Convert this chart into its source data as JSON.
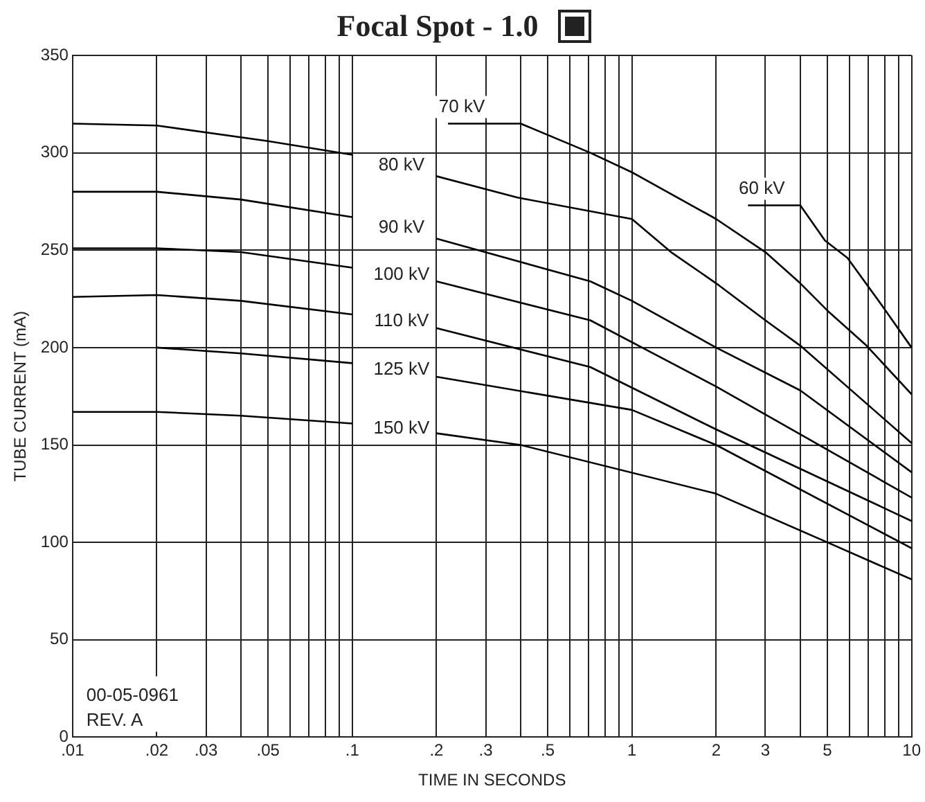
{
  "chart_data": {
    "type": "line",
    "title": "Focal Spot - 1.0",
    "xlabel": "TIME IN SECONDS",
    "ylabel": "TUBE CURRENT (mA)",
    "log": "x",
    "grid": true,
    "legend": false,
    "marker": "none",
    "line_style": "solid",
    "xlim": [
      0.01,
      10
    ],
    "ylim": [
      0,
      350
    ],
    "xticks": [
      {
        "value": 0.01,
        "label": ".01"
      },
      {
        "value": 0.02,
        "label": ".02"
      },
      {
        "value": 0.03,
        "label": ".03"
      },
      {
        "value": 0.04,
        "label": null
      },
      {
        "value": 0.05,
        "label": ".05"
      },
      {
        "value": 0.06,
        "label": null
      },
      {
        "value": 0.07,
        "label": null
      },
      {
        "value": 0.08,
        "label": null
      },
      {
        "value": 0.09,
        "label": null
      },
      {
        "value": 0.1,
        "label": ".1"
      },
      {
        "value": 0.2,
        "label": ".2"
      },
      {
        "value": 0.3,
        "label": ".3"
      },
      {
        "value": 0.4,
        "label": null
      },
      {
        "value": 0.5,
        "label": ".5"
      },
      {
        "value": 0.6,
        "label": null
      },
      {
        "value": 0.7,
        "label": null
      },
      {
        "value": 0.8,
        "label": null
      },
      {
        "value": 0.9,
        "label": null
      },
      1,
      2,
      3,
      {
        "value": 4,
        "label": null
      },
      5,
      {
        "value": 6,
        "label": null
      },
      {
        "value": 7,
        "label": null
      },
      {
        "value": 8,
        "label": null
      },
      {
        "value": 9,
        "label": null
      },
      10
    ],
    "yticks": [
      0,
      50,
      100,
      150,
      200,
      250,
      300,
      350
    ],
    "annotations": [
      "00-05-0961",
      "REV. A"
    ],
    "series": [
      {
        "name": "60 kV",
        "color": "#000000",
        "x": [
          2.6,
          4,
          4.9,
          5.9,
          7.8,
          10
        ],
        "values": [
          273,
          273,
          255,
          246,
          222,
          200
        ]
      },
      {
        "name": "70 kV",
        "color": "#000000",
        "x": [
          0.22,
          0.4,
          0.71,
          1,
          2,
          3,
          4,
          5,
          6.9,
          10
        ],
        "values": [
          315,
          315,
          300,
          290,
          266,
          249,
          233,
          219,
          201,
          176
        ]
      },
      {
        "name": "80 kV",
        "color": "#000000",
        "x": [
          0.01,
          0.02,
          0.05,
          0.1,
          0.15,
          0.2,
          0.39,
          1,
          1.38,
          2,
          3,
          4,
          10
        ],
        "values": [
          315,
          314,
          306,
          299,
          null,
          288,
          277,
          266,
          249,
          233,
          214,
          201,
          151
        ]
      },
      {
        "name": "90 kV",
        "color": "#000000",
        "x": [
          0.01,
          0.02,
          0.04,
          0.1,
          0.15,
          0.2,
          0.71,
          1,
          2,
          4,
          10
        ],
        "values": [
          280,
          280,
          276,
          267,
          null,
          256,
          234,
          224,
          200,
          178,
          136
        ]
      },
      {
        "name": "100 kV",
        "color": "#000000",
        "x": [
          0.01,
          0.02,
          0.04,
          0.1,
          0.15,
          0.2,
          0.71,
          2,
          10
        ],
        "values": [
          251,
          251,
          249,
          241,
          null,
          234,
          214,
          180,
          123
        ]
      },
      {
        "name": "110 kV",
        "color": "#000000",
        "x": [
          0.01,
          0.02,
          0.04,
          0.1,
          0.15,
          0.2,
          0.71,
          2,
          10
        ],
        "values": [
          226,
          227,
          224,
          217,
          null,
          210,
          190,
          158,
          111
        ]
      },
      {
        "name": "125 kV",
        "color": "#000000",
        "x": [
          0.02,
          0.04,
          0.1,
          0.15,
          0.2,
          1,
          2,
          10
        ],
        "values": [
          200,
          197,
          192,
          null,
          185,
          168,
          150,
          97
        ]
      },
      {
        "name": "150 kV",
        "color": "#000000",
        "x": [
          0.01,
          0.02,
          0.04,
          0.1,
          0.15,
          0.2,
          0.4,
          2,
          5,
          10
        ],
        "values": [
          167,
          167,
          165,
          161,
          null,
          156,
          150,
          125,
          100,
          81
        ]
      }
    ]
  }
}
